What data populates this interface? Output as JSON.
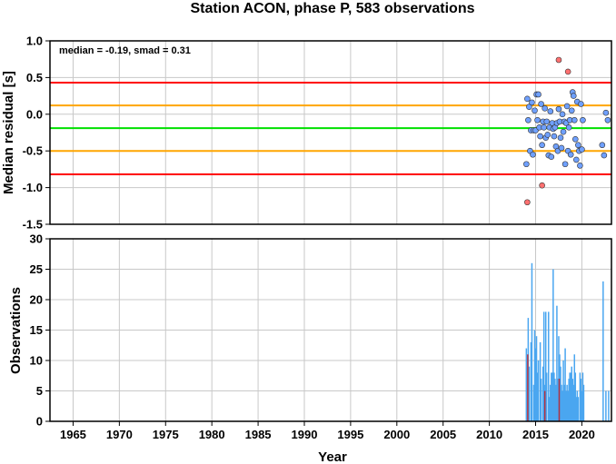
{
  "title": "Station ACON, phase P, 583 observations",
  "chart_data": [
    {
      "type": "scatter",
      "name": "residuals",
      "ylabel": "Median residual [s]",
      "ylim": [
        -1.5,
        1.0
      ],
      "xlim": [
        1962.5,
        2023.2
      ],
      "yticks": [
        "-1.5",
        "-1.0",
        "-0.5",
        "0.0",
        "0.5",
        "1.0"
      ],
      "annotation": "median = -0.19, smad = 0.31",
      "reference_lines": [
        {
          "y": 0.43,
          "color": "#ff0000"
        },
        {
          "y": 0.12,
          "color": "#ffa500"
        },
        {
          "y": -0.19,
          "color": "#00e000"
        },
        {
          "y": -0.5,
          "color": "#ffa500"
        },
        {
          "y": -0.82,
          "color": "#ff0000"
        }
      ],
      "grid": true,
      "series": [
        {
          "color": "#6fa0ff",
          "x": [
            2014.0,
            2014.1,
            2014.2,
            2014.3,
            2014.4,
            2014.5,
            2014.6,
            2014.7,
            2014.8,
            2014.9,
            2015.0,
            2015.1,
            2015.2,
            2015.3,
            2015.4,
            2015.5,
            2015.6,
            2015.7,
            2015.8,
            2015.9,
            2016.0,
            2016.1,
            2016.2,
            2016.3,
            2016.4,
            2016.5,
            2016.6,
            2016.7,
            2016.8,
            2016.9,
            2017.0,
            2017.1,
            2017.2,
            2017.3,
            2017.4,
            2017.5,
            2017.6,
            2017.7,
            2017.8,
            2017.9,
            2018.0,
            2018.1,
            2018.2,
            2018.3,
            2018.4,
            2018.5,
            2018.6,
            2018.7,
            2018.8,
            2018.9,
            2019.0,
            2019.1,
            2019.2,
            2019.3,
            2019.4,
            2019.5,
            2019.6,
            2019.7,
            2019.8,
            2019.9,
            2020.0,
            2020.1,
            2022.2,
            2022.4,
            2022.6,
            2022.8
          ],
          "y": [
            -0.68,
            0.21,
            -0.08,
            0.1,
            -0.5,
            -0.22,
            0.16,
            -0.55,
            -0.22,
            0.05,
            -0.22,
            0.27,
            -0.08,
            0.27,
            -0.18,
            -0.3,
            0.14,
            -0.42,
            -0.1,
            -0.18,
            0.08,
            -0.32,
            -0.1,
            -0.28,
            -0.56,
            -0.18,
            0.04,
            -0.58,
            -0.12,
            -0.2,
            -0.3,
            -0.18,
            -0.44,
            -0.12,
            -0.5,
            0.07,
            -0.1,
            -0.32,
            -0.46,
            0.0,
            -0.24,
            -0.1,
            -0.68,
            -0.12,
            0.11,
            -0.5,
            -0.18,
            -0.08,
            -0.55,
            0.05,
            0.3,
            0.25,
            -0.08,
            -0.34,
            -0.62,
            0.17,
            -0.42,
            -0.5,
            -0.7,
            0.14,
            -0.48,
            -0.08,
            -0.42,
            -0.56,
            0.02,
            -0.08
          ]
        },
        {
          "color": "#ff7070",
          "x": [
            2014.1,
            2015.7,
            2017.5,
            2018.5
          ],
          "y": [
            -1.2,
            -0.97,
            0.74,
            0.58
          ]
        }
      ]
    },
    {
      "type": "bar",
      "name": "observations",
      "xlabel": "Year",
      "ylabel": "Observations",
      "ylim": [
        0,
        30
      ],
      "xlim": [
        1962.5,
        2023.2
      ],
      "yticks": [
        "0",
        "5",
        "10",
        "15",
        "20",
        "25",
        "30"
      ],
      "xticks": [
        "1965",
        "1970",
        "1975",
        "1980",
        "1985",
        "1990",
        "1995",
        "2000",
        "2005",
        "2010",
        "2015",
        "2020"
      ],
      "grid": true,
      "series": [
        {
          "color": "#4aa6f0",
          "x": [
            2014.0,
            2014.2,
            2014.3,
            2014.5,
            2014.6,
            2014.8,
            2014.9,
            2015.0,
            2015.1,
            2015.2,
            2015.3,
            2015.5,
            2015.6,
            2015.8,
            2015.9,
            2016.0,
            2016.1,
            2016.2,
            2016.4,
            2016.5,
            2016.6,
            2016.7,
            2016.8,
            2016.9,
            2017.0,
            2017.1,
            2017.2,
            2017.3,
            2017.4,
            2017.5,
            2017.6,
            2017.7,
            2017.8,
            2017.9,
            2018.0,
            2018.1,
            2018.2,
            2018.3,
            2018.4,
            2018.5,
            2018.6,
            2018.7,
            2018.8,
            2018.9,
            2019.0,
            2019.1,
            2019.2,
            2019.3,
            2019.4,
            2019.5,
            2019.6,
            2019.8,
            2019.9,
            2020.0,
            2020.1,
            2020.2,
            2022.3,
            2022.6,
            2022.9
          ],
          "values": [
            12,
            17,
            9,
            13,
            26,
            6,
            15,
            12,
            14,
            8,
            10,
            13,
            7,
            9,
            18,
            6,
            18,
            8,
            18,
            4,
            6,
            8,
            8,
            25,
            8,
            7,
            6,
            19,
            7,
            14,
            11,
            9,
            6,
            5,
            10,
            6,
            12,
            5,
            6,
            5,
            7,
            8,
            8,
            9,
            7,
            6,
            11,
            8,
            4,
            5,
            4,
            8,
            7,
            5,
            8,
            6,
            23,
            5,
            5
          ]
        },
        {
          "color": "#b03040",
          "x": [
            2014.15,
            2016.0,
            2017.55
          ],
          "values": [
            11,
            5,
            7
          ]
        }
      ]
    }
  ]
}
